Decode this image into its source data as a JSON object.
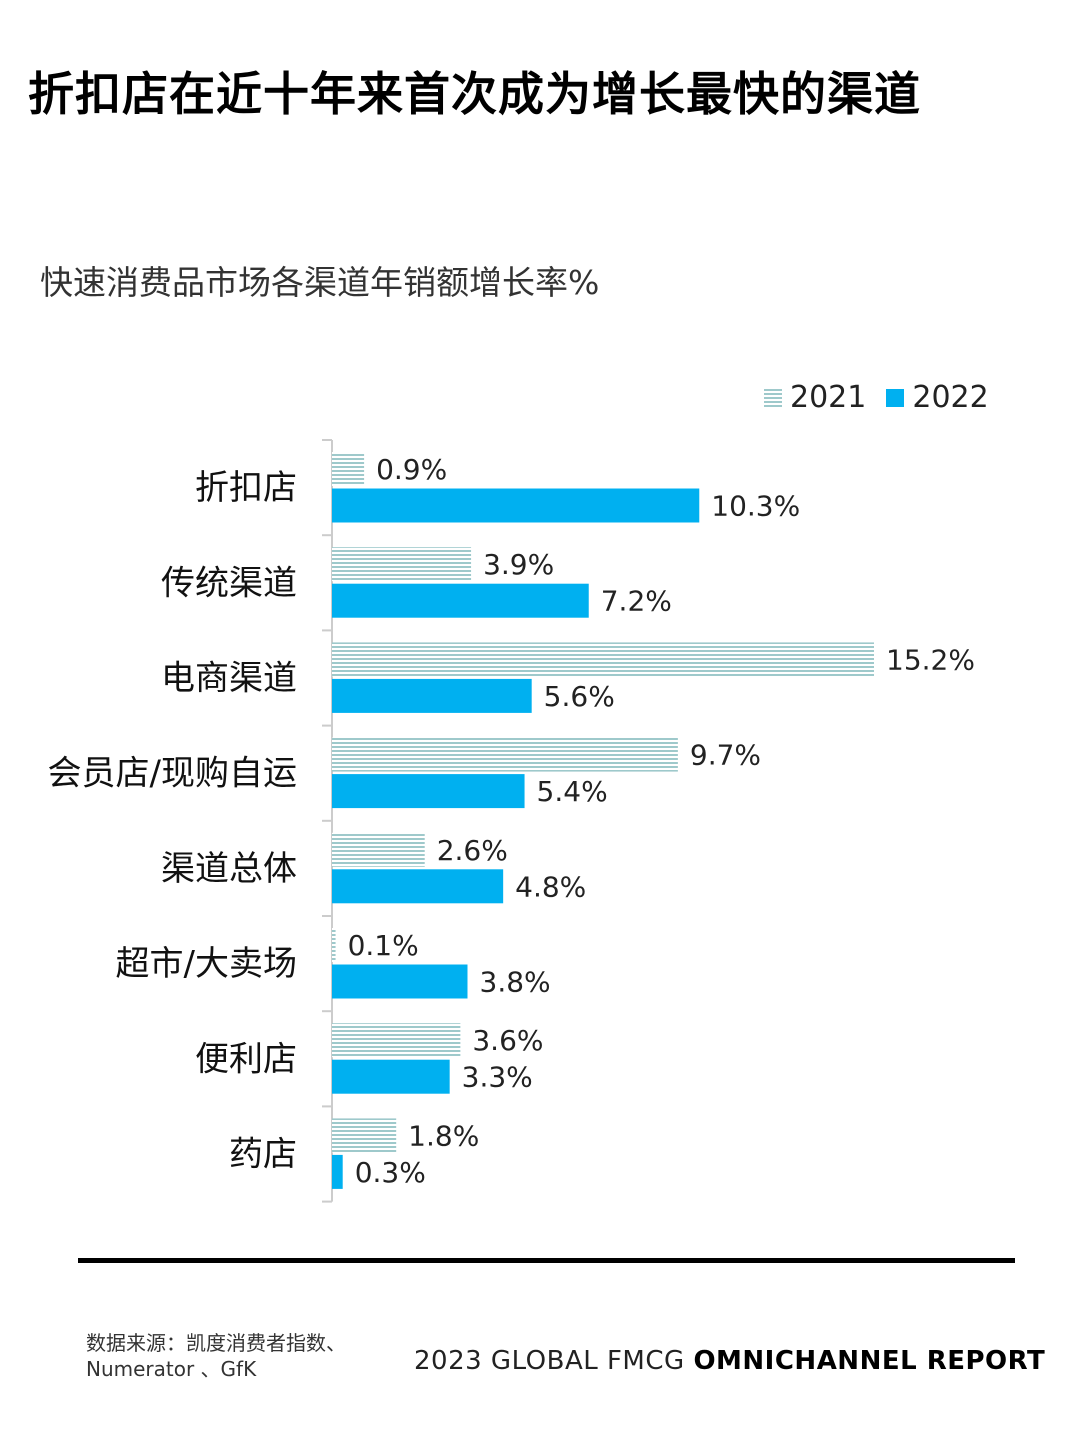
{
  "title": "折扣店在近十年来首次成为增长最快的渠道",
  "subtitle": "快速消费品市场各渠道年销额增长率%",
  "legend": [
    {
      "name": "2021",
      "color": "#9ec9cb",
      "pattern": "horizontal-stripes"
    },
    {
      "name": "2022",
      "color": "#00b0f0",
      "pattern": "solid"
    }
  ],
  "chart_data": {
    "type": "bar",
    "orientation": "horizontal",
    "categories": [
      "折扣店",
      "传统渠道",
      "电商渠道",
      "会员店/现购自运",
      "渠道总体",
      "超市/大卖场",
      "便利店",
      "药店"
    ],
    "series": [
      {
        "name": "2021",
        "values": [
          0.9,
          3.9,
          15.2,
          9.7,
          2.6,
          0.1,
          3.6,
          1.8
        ],
        "labels": [
          "0.9%",
          "3.9%",
          "15.2%",
          "9.7%",
          "2.6%",
          "0.1%",
          "3.6%",
          "1.8%"
        ]
      },
      {
        "name": "2022",
        "values": [
          10.3,
          7.2,
          5.6,
          5.4,
          4.8,
          3.8,
          3.3,
          0.3
        ],
        "labels": [
          "10.3%",
          "7.2%",
          "5.6%",
          "5.4%",
          "4.8%",
          "3.8%",
          "3.3%",
          "0.3%"
        ]
      }
    ],
    "xlim": [
      0,
      15.2
    ],
    "grid": false,
    "legend_position": "top-right"
  },
  "footer": {
    "source_line1": "数据来源：凯度消费者指数、",
    "source_line2": "Numerator 、GfK",
    "report_prefix": "2023 GLOBAL FMCG",
    "report_bold": "OMNICHANNEL REPORT"
  }
}
